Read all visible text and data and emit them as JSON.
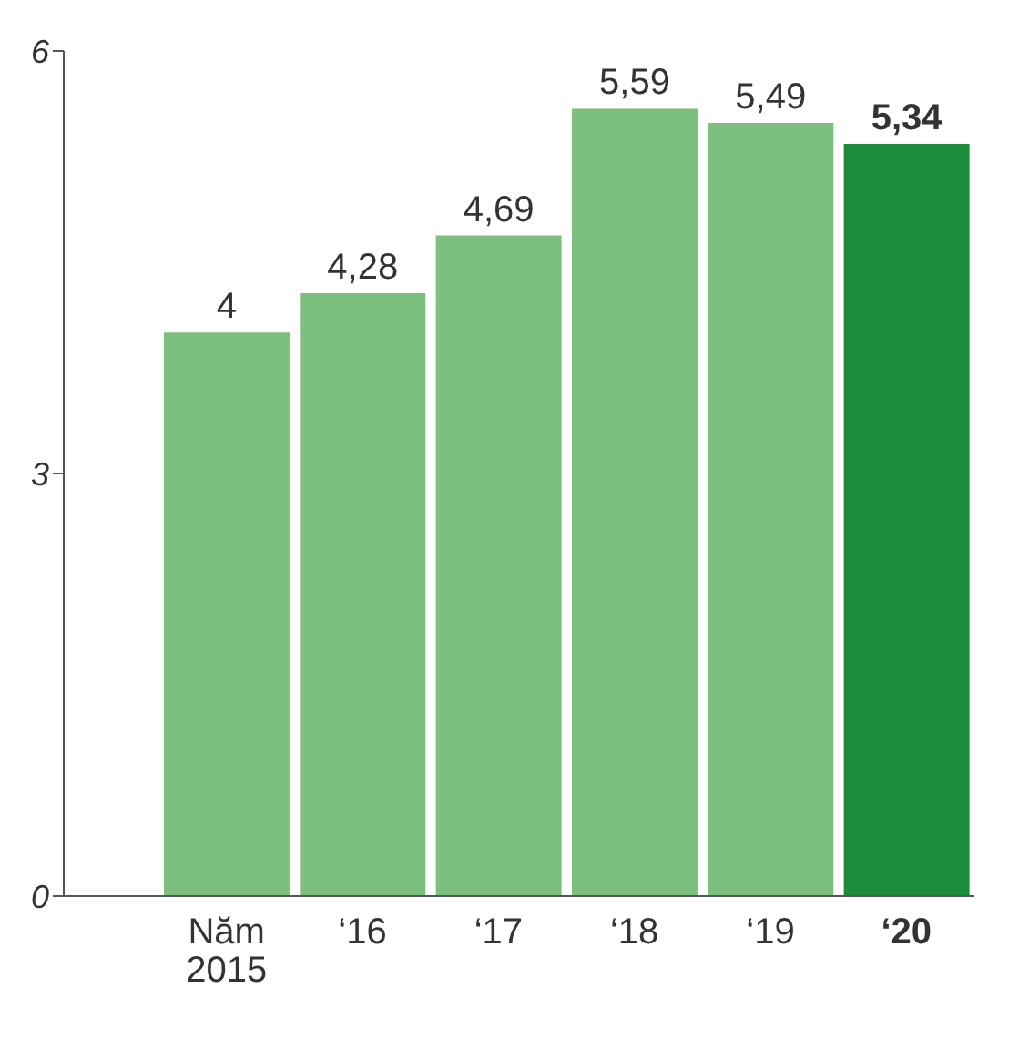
{
  "chart_data": {
    "type": "bar",
    "categories": [
      "Năm\n2015",
      "‘16",
      "‘17",
      "‘18",
      "‘19",
      "‘20"
    ],
    "values": [
      4,
      4.28,
      4.69,
      5.59,
      5.49,
      5.34
    ],
    "value_labels": [
      "4",
      "4,28",
      "4,69",
      "5,59",
      "5,49",
      "5,34"
    ],
    "colors": [
      "#7dbf7d",
      "#7dbf7d",
      "#7dbf7d",
      "#7dbf7d",
      "#7dbf7d",
      "#1a8c3c"
    ],
    "ylim": [
      0,
      6
    ],
    "yticks": [
      0,
      3,
      6
    ],
    "grid": false,
    "legend": false
  }
}
